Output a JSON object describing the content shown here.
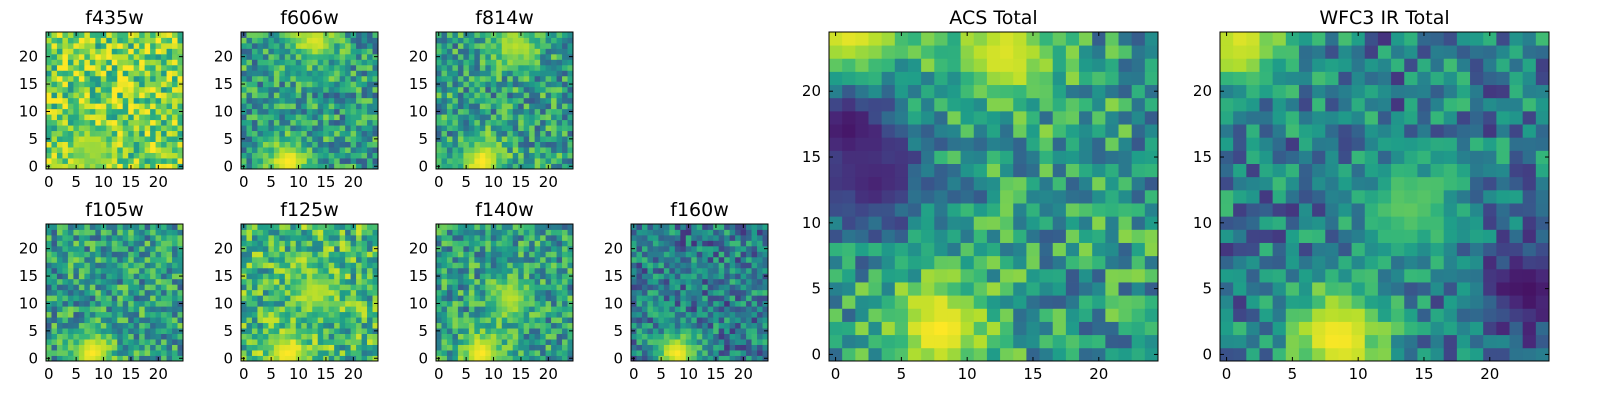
{
  "chart_data": [
    {
      "type": "heatmap",
      "title": "f435w",
      "grid": false,
      "x_ticks": [
        0,
        5,
        10,
        15,
        20
      ],
      "y_ticks": [
        0,
        5,
        10,
        15,
        20
      ],
      "x_tick_labels": [
        "0",
        "5",
        "10",
        "15",
        "20"
      ],
      "y_tick_labels": [
        "0",
        "5",
        "10",
        "15",
        "20"
      ],
      "xlim": [
        -0.5,
        24.5
      ],
      "ylim": [
        -0.5,
        24.5
      ],
      "grid_size": [
        25,
        25
      ],
      "colormap": "viridis",
      "dominant_level": "high",
      "features": [
        {
          "label": "bright",
          "x": 8,
          "y": 3,
          "level": 0.85
        }
      ]
    },
    {
      "type": "heatmap",
      "title": "f606w",
      "grid": false,
      "x_ticks": [
        0,
        5,
        10,
        15,
        20
      ],
      "y_ticks": [
        0,
        5,
        10,
        15,
        20
      ],
      "x_tick_labels": [
        "0",
        "5",
        "10",
        "15",
        "20"
      ],
      "y_tick_labels": [
        "0",
        "5",
        "10",
        "15",
        "20"
      ],
      "xlim": [
        -0.5,
        24.5
      ],
      "ylim": [
        -0.5,
        24.5
      ],
      "grid_size": [
        25,
        25
      ],
      "colormap": "viridis",
      "dominant_level": "medium",
      "features": [
        {
          "label": "bright",
          "x": 8,
          "y": 1,
          "level": 1.0
        },
        {
          "label": "bright",
          "x": 13,
          "y": 23,
          "level": 0.95
        }
      ]
    },
    {
      "type": "heatmap",
      "title": "f814w",
      "grid": false,
      "x_ticks": [
        0,
        5,
        10,
        15,
        20
      ],
      "y_ticks": [
        0,
        5,
        10,
        15,
        20
      ],
      "x_tick_labels": [
        "0",
        "5",
        "10",
        "15",
        "20"
      ],
      "y_tick_labels": [
        "0",
        "5",
        "10",
        "15",
        "20"
      ],
      "xlim": [
        -0.5,
        24.5
      ],
      "ylim": [
        -0.5,
        24.5
      ],
      "grid_size": [
        25,
        25
      ],
      "colormap": "viridis",
      "dominant_level": "medium",
      "features": [
        {
          "label": "bright",
          "x": 8,
          "y": 1,
          "level": 1.0
        },
        {
          "label": "bright",
          "x": 14,
          "y": 22,
          "level": 0.9
        }
      ]
    },
    {
      "type": "heatmap",
      "title": "f105w",
      "grid": false,
      "x_ticks": [
        0,
        5,
        10,
        15,
        20
      ],
      "y_ticks": [
        0,
        5,
        10,
        15,
        20
      ],
      "x_tick_labels": [
        "0",
        "5",
        "10",
        "15",
        "20"
      ],
      "y_tick_labels": [
        "0",
        "5",
        "10",
        "15",
        "20"
      ],
      "xlim": [
        -0.5,
        24.5
      ],
      "ylim": [
        -0.5,
        24.5
      ],
      "grid_size": [
        25,
        25
      ],
      "colormap": "viridis",
      "dominant_level": "medium",
      "features": [
        {
          "label": "bright",
          "x": 8,
          "y": 1,
          "level": 1.0
        }
      ]
    },
    {
      "type": "heatmap",
      "title": "f125w",
      "grid": false,
      "x_ticks": [
        0,
        5,
        10,
        15,
        20
      ],
      "y_ticks": [
        0,
        5,
        10,
        15,
        20
      ],
      "x_tick_labels": [
        "0",
        "5",
        "10",
        "15",
        "20"
      ],
      "y_tick_labels": [
        "0",
        "5",
        "10",
        "15",
        "20"
      ],
      "xlim": [
        -0.5,
        24.5
      ],
      "ylim": [
        -0.5,
        24.5
      ],
      "grid_size": [
        25,
        25
      ],
      "colormap": "viridis",
      "dominant_level": "medium-high",
      "features": [
        {
          "label": "bright",
          "x": 8,
          "y": 1,
          "level": 1.0
        },
        {
          "label": "bright",
          "x": 13,
          "y": 12,
          "level": 0.9
        }
      ]
    },
    {
      "type": "heatmap",
      "title": "f140w",
      "grid": false,
      "x_ticks": [
        0,
        5,
        10,
        15,
        20
      ],
      "y_ticks": [
        0,
        5,
        10,
        15,
        20
      ],
      "x_tick_labels": [
        "0",
        "5",
        "10",
        "15",
        "20"
      ],
      "y_tick_labels": [
        "0",
        "5",
        "10",
        "15",
        "20"
      ],
      "xlim": [
        -0.5,
        24.5
      ],
      "ylim": [
        -0.5,
        24.5
      ],
      "grid_size": [
        25,
        25
      ],
      "colormap": "viridis",
      "dominant_level": "medium",
      "features": [
        {
          "label": "bright",
          "x": 8,
          "y": 1,
          "level": 1.0
        },
        {
          "label": "bright",
          "x": 13,
          "y": 11,
          "level": 0.9
        }
      ]
    },
    {
      "type": "heatmap",
      "title": "f160w",
      "grid": false,
      "x_ticks": [
        0,
        5,
        10,
        15,
        20
      ],
      "y_ticks": [
        0,
        5,
        10,
        15,
        20
      ],
      "x_tick_labels": [
        "0",
        "5",
        "10",
        "15",
        "20"
      ],
      "y_tick_labels": [
        "0",
        "5",
        "10",
        "15",
        "20"
      ],
      "xlim": [
        -0.5,
        24.5
      ],
      "ylim": [
        -0.5,
        24.5
      ],
      "grid_size": [
        25,
        25
      ],
      "colormap": "viridis",
      "dominant_level": "low-medium",
      "features": [
        {
          "label": "bright",
          "x": 8,
          "y": 1,
          "level": 1.0
        }
      ]
    },
    {
      "type": "heatmap",
      "title": "ACS Total",
      "grid": false,
      "x_ticks": [
        0,
        5,
        10,
        15,
        20
      ],
      "y_ticks": [
        0,
        5,
        10,
        15,
        20
      ],
      "x_tick_labels": [
        "0",
        "5",
        "10",
        "15",
        "20"
      ],
      "y_tick_labels": [
        "0",
        "5",
        "10",
        "15",
        "20"
      ],
      "xlim": [
        -0.5,
        24.5
      ],
      "ylim": [
        -0.5,
        24.5
      ],
      "grid_size": [
        25,
        25
      ],
      "colormap": "viridis",
      "dominant_level": "medium",
      "features": [
        {
          "label": "bright",
          "x": 8,
          "y": 2,
          "level": 1.0
        },
        {
          "label": "bright",
          "x": 13,
          "y": 23,
          "level": 0.95
        },
        {
          "label": "bright",
          "x": 1,
          "y": 24,
          "level": 1.0
        },
        {
          "label": "dark",
          "x": 1,
          "y": 17,
          "level": 0.05
        },
        {
          "label": "dark",
          "x": 3,
          "y": 13,
          "level": 0.1
        }
      ]
    },
    {
      "type": "heatmap",
      "title": "WFC3 IR Total",
      "grid": false,
      "x_ticks": [
        0,
        5,
        10,
        15,
        20
      ],
      "y_ticks": [
        0,
        5,
        10,
        15,
        20
      ],
      "x_tick_labels": [
        "0",
        "5",
        "10",
        "15",
        "20"
      ],
      "y_tick_labels": [
        "0",
        "5",
        "10",
        "15",
        "20"
      ],
      "xlim": [
        -0.5,
        24.5
      ],
      "ylim": [
        -0.5,
        24.5
      ],
      "grid_size": [
        25,
        25
      ],
      "colormap": "viridis",
      "dominant_level": "low-medium",
      "features": [
        {
          "label": "bright",
          "x": 8.5,
          "y": 1.5,
          "level": 1.0
        },
        {
          "label": "bright",
          "x": 14,
          "y": 11,
          "level": 0.75
        },
        {
          "label": "bright",
          "x": 1,
          "y": 24,
          "level": 0.95
        },
        {
          "label": "dark",
          "x": 23,
          "y": 5,
          "level": 0.05
        }
      ]
    }
  ]
}
